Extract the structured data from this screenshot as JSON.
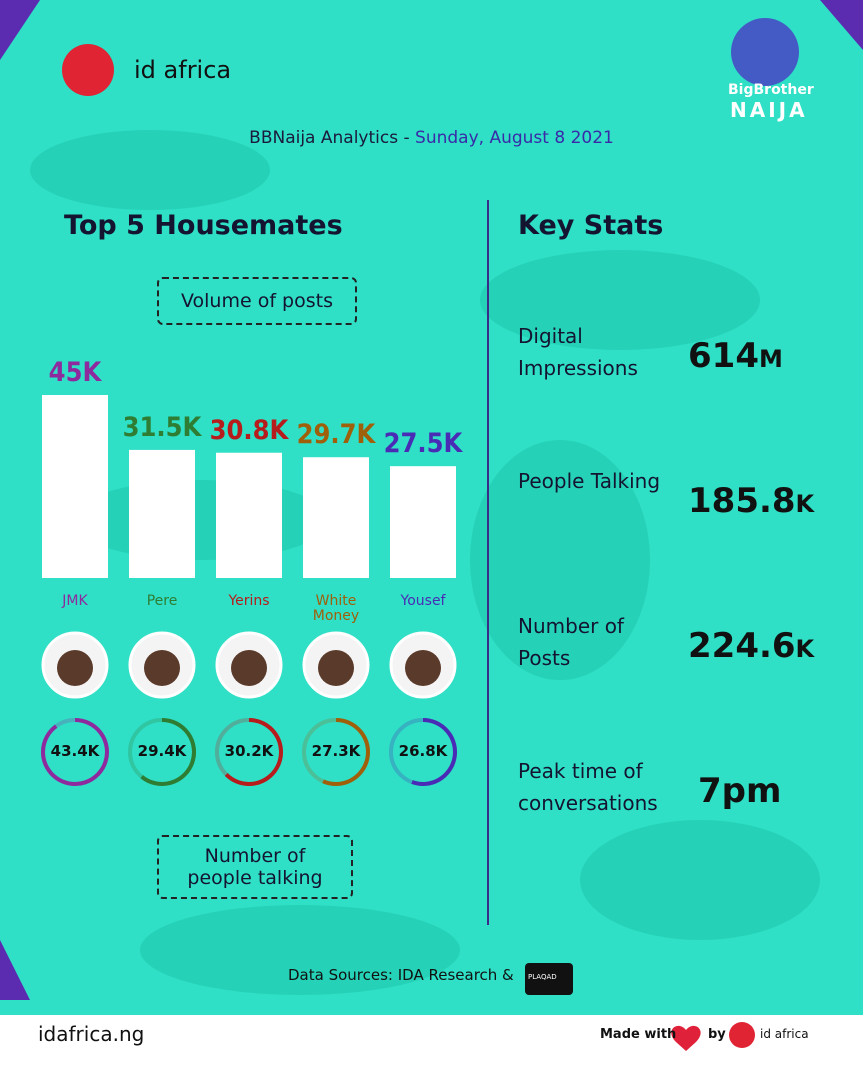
{
  "header": {
    "brand": "id africa",
    "title": "BBNaija Analytics - ",
    "date": "Sunday, August 8 2021",
    "show_name": "BigBrother",
    "show_sub": "NAIJA"
  },
  "chart_data": [
    {
      "type": "bar",
      "title": "Top 5 Housemates",
      "subtitle": "Volume of posts",
      "categories": [
        "JMK",
        "Pere",
        "Yerins",
        "White Money",
        "Yousef"
      ],
      "values": [
        45,
        31.5,
        30.8,
        29.7,
        27.5
      ],
      "value_labels": [
        "45K",
        "31.5K",
        "30.8K",
        "29.7K",
        "27.5K"
      ],
      "colors": [
        "#8e2a9e",
        "#2e7d32",
        "#b71c1c",
        "#a0600a",
        "#4a2bb5"
      ]
    },
    {
      "type": "ring",
      "subtitle": "Number of people talking",
      "values": [
        43.4,
        29.4,
        30.2,
        27.3,
        26.8
      ],
      "value_labels": [
        "43.4K",
        "29.4K",
        "30.2K",
        "27.3K",
        "26.8K"
      ],
      "colors": [
        "#8e2a9e",
        "#2e7d32",
        "#b71c1c",
        "#a0600a",
        "#4a2bb5"
      ]
    }
  ],
  "key_stats": {
    "title": "Key Stats",
    "items": [
      {
        "label": "Digital Impressions",
        "value": "614",
        "unit": "M"
      },
      {
        "label": "People Talking",
        "value": "185.8",
        "unit": "K"
      },
      {
        "label": "Number of Posts",
        "value": "224.6",
        "unit": "K"
      },
      {
        "label": "Peak time of conversations",
        "value": "7pm",
        "unit": ""
      }
    ]
  },
  "footer": {
    "sources": "Data Sources: IDA Research &",
    "partner": "PLAQAD",
    "site": "idafrica.ng",
    "made_with": "Made with",
    "by": "by",
    "brand": "id africa"
  }
}
